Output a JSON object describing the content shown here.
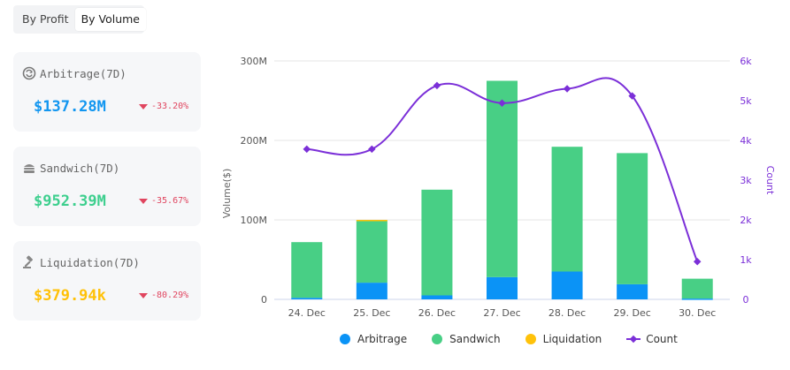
{
  "tabs": {
    "by_profit": "By Profit",
    "by_volume": "By Volume"
  },
  "cards": {
    "arbitrage": {
      "title": "Arbitrage(7D)",
      "value": "$137.28M",
      "change": "-33.20%",
      "color": "#1296f0"
    },
    "sandwich": {
      "title": "Sandwich(7D)",
      "value": "$952.39M",
      "change": "-35.67%",
      "color": "#3dcf8e"
    },
    "liquidation": {
      "title": "Liquidation(7D)",
      "value": "$379.94k",
      "change": "-80.29%",
      "color": "#ffc107"
    }
  },
  "legend": {
    "arbitrage": "Arbitrage",
    "sandwich": "Sandwich",
    "liquidation": "Liquidation",
    "count": "Count"
  },
  "colors": {
    "arbitrage": "#0b93f6",
    "sandwich": "#48cf85",
    "liquidation": "#ffc20a",
    "count": "#7b2fd8",
    "negative": "#e0455f"
  },
  "chart_data": {
    "type": "bar",
    "stacked": true,
    "categories": [
      "24. Dec",
      "25. Dec",
      "26. Dec",
      "27. Dec",
      "28. Dec",
      "29. Dec",
      "30. Dec"
    ],
    "series": [
      {
        "name": "Arbitrage",
        "values": [
          2,
          21,
          5,
          28,
          35,
          19,
          1
        ],
        "color": "#0b93f6"
      },
      {
        "name": "Sandwich",
        "values": [
          70,
          78,
          133,
          247,
          157,
          165,
          25
        ],
        "color": "#48cf85"
      },
      {
        "name": "Liquidation",
        "values": [
          0,
          1,
          0,
          0,
          0,
          0,
          0
        ],
        "color": "#ffc20a"
      }
    ],
    "line_series": {
      "name": "Count",
      "axis": "right",
      "values": [
        3780,
        3780,
        5380,
        4940,
        5300,
        5120,
        950
      ],
      "color": "#7b2fd8"
    },
    "ylabel": "Volume($)",
    "ylabel_right": "Count",
    "ylim": [
      0,
      300
    ],
    "ylim_right": [
      0,
      6000
    ],
    "yticks": [
      "0",
      "100M",
      "200M",
      "300M"
    ],
    "yticks_right": [
      "0",
      "1k",
      "2k",
      "3k",
      "4k",
      "5k",
      "6k"
    ],
    "legend_position": "bottom-center",
    "grid": true
  }
}
